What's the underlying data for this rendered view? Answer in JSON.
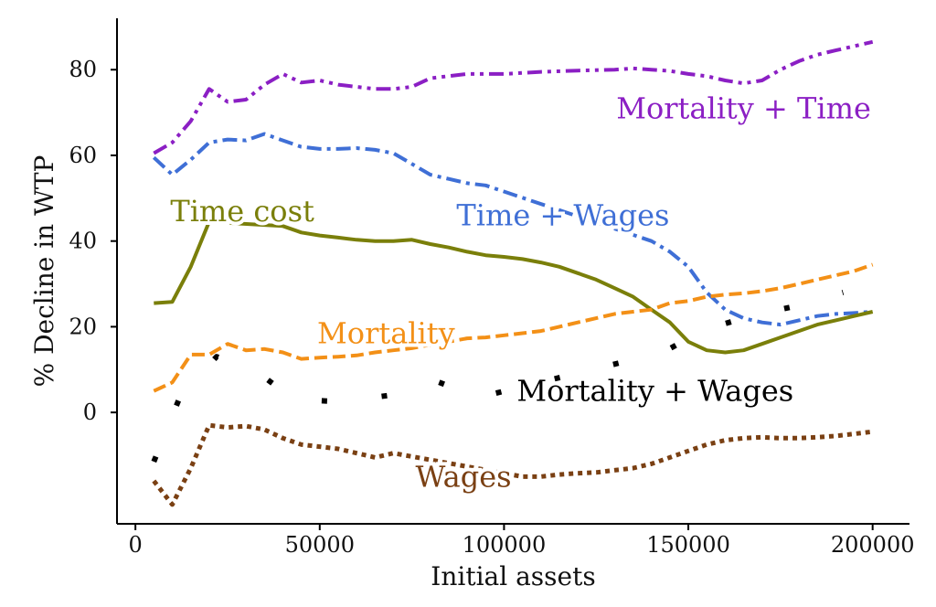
{
  "chart_data": {
    "type": "line",
    "title": "",
    "xlabel": "Initial assets",
    "ylabel": "% Decline in WTP",
    "xlim": [
      -5000,
      210000
    ],
    "ylim": [
      -26,
      92
    ],
    "xticks": [
      0,
      50000,
      100000,
      150000,
      200000
    ],
    "yticks": [
      0,
      20,
      40,
      60,
      80
    ],
    "grid": false,
    "legend": "inline labels",
    "series": [
      {
        "name": "Mortality + Time",
        "color": "#8b1fc4",
        "style": "dashdotdot",
        "x": [
          5000,
          10000,
          15000,
          20000,
          25000,
          30000,
          35000,
          40000,
          45000,
          50000,
          55000,
          60000,
          65000,
          70000,
          75000,
          80000,
          90000,
          100000,
          110000,
          120000,
          130000,
          135000,
          140000,
          145000,
          150000,
          155000,
          160000,
          165000,
          170000,
          175000,
          180000,
          185000,
          190000,
          195000,
          200000
        ],
        "y": [
          60.5,
          63,
          68,
          75.5,
          72.5,
          73,
          76.5,
          79,
          77,
          77.5,
          76.5,
          76,
          75.5,
          75.5,
          76,
          78,
          79,
          79,
          79.5,
          79.8,
          80,
          80.3,
          80,
          79.7,
          79,
          78.5,
          77.5,
          76.8,
          77.5,
          80,
          82,
          83.5,
          84.5,
          85.5,
          86.5
        ]
      },
      {
        "name": "Time + Wages",
        "color": "#3f6fd6",
        "style": "dashdot",
        "x": [
          5000,
          10000,
          15000,
          20000,
          25000,
          30000,
          35000,
          40000,
          45000,
          50000,
          55000,
          60000,
          65000,
          70000,
          75000,
          80000,
          85000,
          90000,
          95000,
          140000,
          145000,
          150000,
          155000,
          160000,
          165000,
          170000,
          175000,
          180000,
          185000,
          190000,
          195000,
          200000
        ],
        "y": [
          59.5,
          55.5,
          59,
          63,
          63.7,
          63.5,
          65,
          63.5,
          62,
          61.5,
          61.5,
          61.7,
          61.3,
          60.5,
          58,
          55.5,
          54.5,
          53.5,
          53,
          40,
          37.5,
          34,
          28,
          24,
          22,
          21,
          20.5,
          21.5,
          22.5,
          23,
          23.2,
          23.5
        ]
      },
      {
        "name": "Time cost",
        "color": "#7a7f0a",
        "style": "solid",
        "x": [
          5000,
          10000,
          15000,
          20000,
          40000,
          45000,
          50000,
          55000,
          60000,
          65000,
          70000,
          75000,
          80000,
          85000,
          90000,
          95000,
          100000,
          105000,
          110000,
          115000,
          120000,
          125000,
          130000,
          135000,
          140000,
          145000,
          150000,
          155000,
          160000,
          165000,
          170000,
          175000,
          180000,
          185000,
          190000,
          195000,
          200000
        ],
        "y": [
          25.5,
          25.8,
          34,
          44.5,
          43.5,
          42,
          41.3,
          40.8,
          40.3,
          40,
          40,
          40.3,
          39.3,
          38.5,
          37.5,
          36.7,
          36.3,
          35.8,
          35,
          34,
          32.5,
          31,
          29,
          27,
          24,
          21,
          16.5,
          14.5,
          14,
          14.5,
          16,
          17.5,
          19,
          20.5,
          21.5,
          22.5,
          23.5
        ]
      },
      {
        "name": "Mortality",
        "color": "#f39017",
        "style": "dashed",
        "x": [
          5000,
          10000,
          15000,
          20000,
          25000,
          30000,
          35000,
          40000,
          45000,
          50000,
          55000,
          60000,
          65000,
          70000,
          75000,
          80000,
          85000,
          90000,
          95000,
          100000,
          105000,
          110000,
          115000,
          120000,
          125000,
          130000,
          135000,
          140000,
          145000,
          150000,
          155000,
          160000,
          165000,
          170000,
          175000,
          180000,
          185000,
          190000,
          195000,
          200000
        ],
        "y": [
          5,
          7,
          13.5,
          13.5,
          16,
          14.5,
          14.8,
          14,
          12.5,
          12.8,
          13,
          13.3,
          14,
          14.5,
          15,
          15.8,
          16.5,
          17.3,
          17.5,
          18,
          18.5,
          19,
          20,
          21,
          22,
          23,
          23.5,
          24,
          25.5,
          26,
          27,
          27.5,
          27.8,
          28.3,
          29,
          30,
          31,
          32,
          33,
          34.5
        ]
      },
      {
        "name": "Mortality + Wages",
        "color": "#000000",
        "style": "sparse-dots",
        "x": [
          5000,
          12000,
          22000,
          33000,
          43000,
          56000,
          69000,
          81000,
          93000,
          143000,
          155000,
          167000,
          180000,
          192000
        ],
        "y": [
          -11.5,
          3.5,
          13,
          9.5,
          3,
          2.5,
          4,
          7.5,
          3.5,
          14,
          19.5,
          22.5,
          25,
          28
        ]
      },
      {
        "name": "Wages",
        "color": "#7a4013",
        "style": "dotted",
        "x": [
          5000,
          10000,
          15000,
          20000,
          25000,
          30000,
          35000,
          40000,
          45000,
          50000,
          55000,
          60000,
          65000,
          70000,
          105000,
          110000,
          115000,
          120000,
          125000,
          130000,
          135000,
          140000,
          145000,
          150000,
          155000,
          160000,
          165000,
          170000,
          175000,
          180000,
          185000,
          190000,
          195000,
          200000
        ],
        "y": [
          -16,
          -21.5,
          -13,
          -3,
          -3.5,
          -3.2,
          -4,
          -6,
          -7.5,
          -8,
          -8.5,
          -9.5,
          -10.5,
          -9.5,
          -15,
          -15,
          -14.5,
          -14.2,
          -14,
          -13.5,
          -13,
          -12,
          -10.5,
          -9,
          -7.5,
          -6.5,
          -6,
          -5.8,
          -6,
          -6,
          -5.8,
          -5.5,
          -5,
          -4.5
        ]
      }
    ],
    "annotations": [
      {
        "text": "Mortality + Time",
        "color": "#8b1fc4",
        "x": 165000,
        "y": 71
      },
      {
        "text": "Time + Wages",
        "color": "#3f6fd6",
        "x": 116000,
        "y": 46
      },
      {
        "text": "Time cost",
        "color": "#7a7f0a",
        "x": 29000,
        "y": 47
      },
      {
        "text": "Mortality",
        "color": "#f39017",
        "x": 68000,
        "y": 18.5
      },
      {
        "text": "Mortality + Wages",
        "color": "#000000",
        "x": 141000,
        "y": 5
      },
      {
        "text": "Wages",
        "color": "#7a4013",
        "x": 89000,
        "y": -15
      }
    ]
  }
}
